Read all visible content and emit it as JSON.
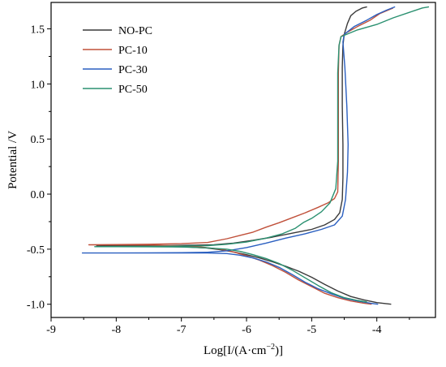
{
  "chart_data": {
    "type": "line",
    "xlabel_main": "Log[I/(A·cm",
    "xlabel_sup": "−2",
    "xlabel_end": ")]",
    "ylabel": "Potential /V",
    "xlim": [
      -9,
      -3.1
    ],
    "ylim": [
      -1.12,
      1.74
    ],
    "x_ticks": [
      -9,
      -8,
      -7,
      -6,
      -5,
      -4
    ],
    "x_tick_labels": [
      "-9",
      "-8",
      "-7",
      "-6",
      "-5",
      "-4"
    ],
    "y_ticks": [
      -1.0,
      -0.5,
      0.0,
      0.5,
      1.0,
      1.5
    ],
    "y_tick_labels": [
      "-1.0",
      "-0.5",
      "0.0",
      "0.5",
      "1.0",
      "1.5"
    ],
    "grid": false,
    "legend_position": "top-left",
    "series": [
      {
        "name": "NO-PC",
        "color": "#3a3a3a",
        "points": [
          [
            -3.78,
            -1.0
          ],
          [
            -4.0,
            -0.985
          ],
          [
            -4.2,
            -0.96
          ],
          [
            -4.4,
            -0.93
          ],
          [
            -4.6,
            -0.88
          ],
          [
            -4.8,
            -0.82
          ],
          [
            -5.0,
            -0.755
          ],
          [
            -5.2,
            -0.7
          ],
          [
            -5.4,
            -0.655
          ],
          [
            -5.6,
            -0.615
          ],
          [
            -5.8,
            -0.58
          ],
          [
            -6.0,
            -0.55
          ],
          [
            -6.2,
            -0.525
          ],
          [
            -6.4,
            -0.505
          ],
          [
            -6.6,
            -0.49
          ],
          [
            -6.9,
            -0.48
          ],
          [
            -7.3,
            -0.475
          ],
          [
            -7.8,
            -0.472
          ],
          [
            -8.3,
            -0.47
          ],
          [
            -7.8,
            -0.468
          ],
          [
            -7.2,
            -0.466
          ],
          [
            -6.8,
            -0.464
          ],
          [
            -6.5,
            -0.46
          ],
          [
            -6.2,
            -0.445
          ],
          [
            -5.9,
            -0.42
          ],
          [
            -5.6,
            -0.39
          ],
          [
            -5.3,
            -0.355
          ],
          [
            -5.0,
            -0.32
          ],
          [
            -4.8,
            -0.28
          ],
          [
            -4.65,
            -0.23
          ],
          [
            -4.57,
            -0.17
          ],
          [
            -4.53,
            -0.05
          ],
          [
            -4.52,
            0.15
          ],
          [
            -4.52,
            0.45
          ],
          [
            -4.53,
            0.8
          ],
          [
            -4.53,
            1.15
          ],
          [
            -4.52,
            1.35
          ],
          [
            -4.5,
            1.45
          ],
          [
            -4.45,
            1.55
          ],
          [
            -4.4,
            1.62
          ],
          [
            -4.32,
            1.66
          ],
          [
            -4.22,
            1.69
          ],
          [
            -4.15,
            1.7
          ]
        ]
      },
      {
        "name": "PC-10",
        "color": "#c0503a",
        "points": [
          [
            -4.08,
            -1.0
          ],
          [
            -4.2,
            -0.99
          ],
          [
            -4.4,
            -0.97
          ],
          [
            -4.6,
            -0.94
          ],
          [
            -4.8,
            -0.9
          ],
          [
            -5.0,
            -0.84
          ],
          [
            -5.2,
            -0.78
          ],
          [
            -5.4,
            -0.71
          ],
          [
            -5.6,
            -0.65
          ],
          [
            -5.8,
            -0.6
          ],
          [
            -6.0,
            -0.56
          ],
          [
            -6.2,
            -0.525
          ],
          [
            -6.4,
            -0.5
          ],
          [
            -6.7,
            -0.48
          ],
          [
            -7.0,
            -0.47
          ],
          [
            -7.5,
            -0.462
          ],
          [
            -8.0,
            -0.46
          ],
          [
            -8.42,
            -0.46
          ],
          [
            -8.0,
            -0.458
          ],
          [
            -7.5,
            -0.455
          ],
          [
            -7.0,
            -0.45
          ],
          [
            -6.6,
            -0.44
          ],
          [
            -6.3,
            -0.405
          ],
          [
            -6.1,
            -0.375
          ],
          [
            -5.9,
            -0.345
          ],
          [
            -5.7,
            -0.3
          ],
          [
            -5.5,
            -0.26
          ],
          [
            -5.3,
            -0.215
          ],
          [
            -5.1,
            -0.17
          ],
          [
            -4.9,
            -0.12
          ],
          [
            -4.75,
            -0.08
          ],
          [
            -4.65,
            -0.04
          ],
          [
            -4.6,
            0.02
          ],
          [
            -4.59,
            0.3
          ],
          [
            -4.59,
            0.7
          ],
          [
            -4.59,
            1.1
          ],
          [
            -4.58,
            1.35
          ],
          [
            -4.55,
            1.43
          ],
          [
            -4.45,
            1.47
          ],
          [
            -4.3,
            1.52
          ],
          [
            -4.1,
            1.58
          ],
          [
            -3.95,
            1.64
          ],
          [
            -3.75,
            1.69
          ]
        ]
      },
      {
        "name": "PC-30",
        "color": "#2a5fc0",
        "points": [
          [
            -3.98,
            -1.0
          ],
          [
            -4.1,
            -0.99
          ],
          [
            -4.3,
            -0.97
          ],
          [
            -4.5,
            -0.945
          ],
          [
            -4.7,
            -0.905
          ],
          [
            -4.9,
            -0.86
          ],
          [
            -5.1,
            -0.8
          ],
          [
            -5.3,
            -0.73
          ],
          [
            -5.5,
            -0.665
          ],
          [
            -5.7,
            -0.615
          ],
          [
            -5.9,
            -0.58
          ],
          [
            -6.1,
            -0.555
          ],
          [
            -6.3,
            -0.54
          ],
          [
            -6.6,
            -0.535
          ],
          [
            -7.0,
            -0.535
          ],
          [
            -7.6,
            -0.535
          ],
          [
            -8.1,
            -0.535
          ],
          [
            -8.52,
            -0.535
          ],
          [
            -8.0,
            -0.535
          ],
          [
            -7.5,
            -0.533
          ],
          [
            -7.0,
            -0.532
          ],
          [
            -6.6,
            -0.528
          ],
          [
            -6.3,
            -0.515
          ],
          [
            -6.0,
            -0.485
          ],
          [
            -5.7,
            -0.445
          ],
          [
            -5.4,
            -0.4
          ],
          [
            -5.1,
            -0.36
          ],
          [
            -4.85,
            -0.32
          ],
          [
            -4.65,
            -0.28
          ],
          [
            -4.53,
            -0.2
          ],
          [
            -4.48,
            -0.05
          ],
          [
            -4.45,
            0.2
          ],
          [
            -4.44,
            0.45
          ],
          [
            -4.46,
            0.8
          ],
          [
            -4.49,
            1.15
          ],
          [
            -4.52,
            1.38
          ],
          [
            -4.5,
            1.45
          ],
          [
            -4.35,
            1.52
          ],
          [
            -4.15,
            1.58
          ],
          [
            -4.0,
            1.63
          ],
          [
            -3.85,
            1.67
          ],
          [
            -3.72,
            1.7
          ]
        ]
      },
      {
        "name": "PC-50",
        "color": "#2a9070",
        "points": [
          [
            -4.15,
            -0.98
          ],
          [
            -4.3,
            -0.965
          ],
          [
            -4.5,
            -0.94
          ],
          [
            -4.7,
            -0.895
          ],
          [
            -4.9,
            -0.83
          ],
          [
            -5.1,
            -0.76
          ],
          [
            -5.3,
            -0.69
          ],
          [
            -5.5,
            -0.63
          ],
          [
            -5.7,
            -0.585
          ],
          [
            -5.9,
            -0.55
          ],
          [
            -6.1,
            -0.52
          ],
          [
            -6.3,
            -0.5
          ],
          [
            -6.6,
            -0.488
          ],
          [
            -7.0,
            -0.48
          ],
          [
            -7.5,
            -0.478
          ],
          [
            -8.0,
            -0.477
          ],
          [
            -8.33,
            -0.477
          ],
          [
            -8.0,
            -0.476
          ],
          [
            -7.5,
            -0.474
          ],
          [
            -7.0,
            -0.472
          ],
          [
            -6.6,
            -0.468
          ],
          [
            -6.3,
            -0.455
          ],
          [
            -6.0,
            -0.435
          ],
          [
            -5.7,
            -0.4
          ],
          [
            -5.45,
            -0.36
          ],
          [
            -5.25,
            -0.31
          ],
          [
            -5.12,
            -0.255
          ],
          [
            -5.0,
            -0.22
          ],
          [
            -4.85,
            -0.16
          ],
          [
            -4.72,
            -0.08
          ],
          [
            -4.63,
            0.05
          ],
          [
            -4.6,
            0.3
          ],
          [
            -4.6,
            0.7
          ],
          [
            -4.6,
            1.1
          ],
          [
            -4.58,
            1.35
          ],
          [
            -4.55,
            1.43
          ],
          [
            -4.3,
            1.49
          ],
          [
            -4.0,
            1.54
          ],
          [
            -3.75,
            1.6
          ],
          [
            -3.5,
            1.65
          ],
          [
            -3.3,
            1.69
          ],
          [
            -3.2,
            1.7
          ]
        ]
      }
    ]
  }
}
